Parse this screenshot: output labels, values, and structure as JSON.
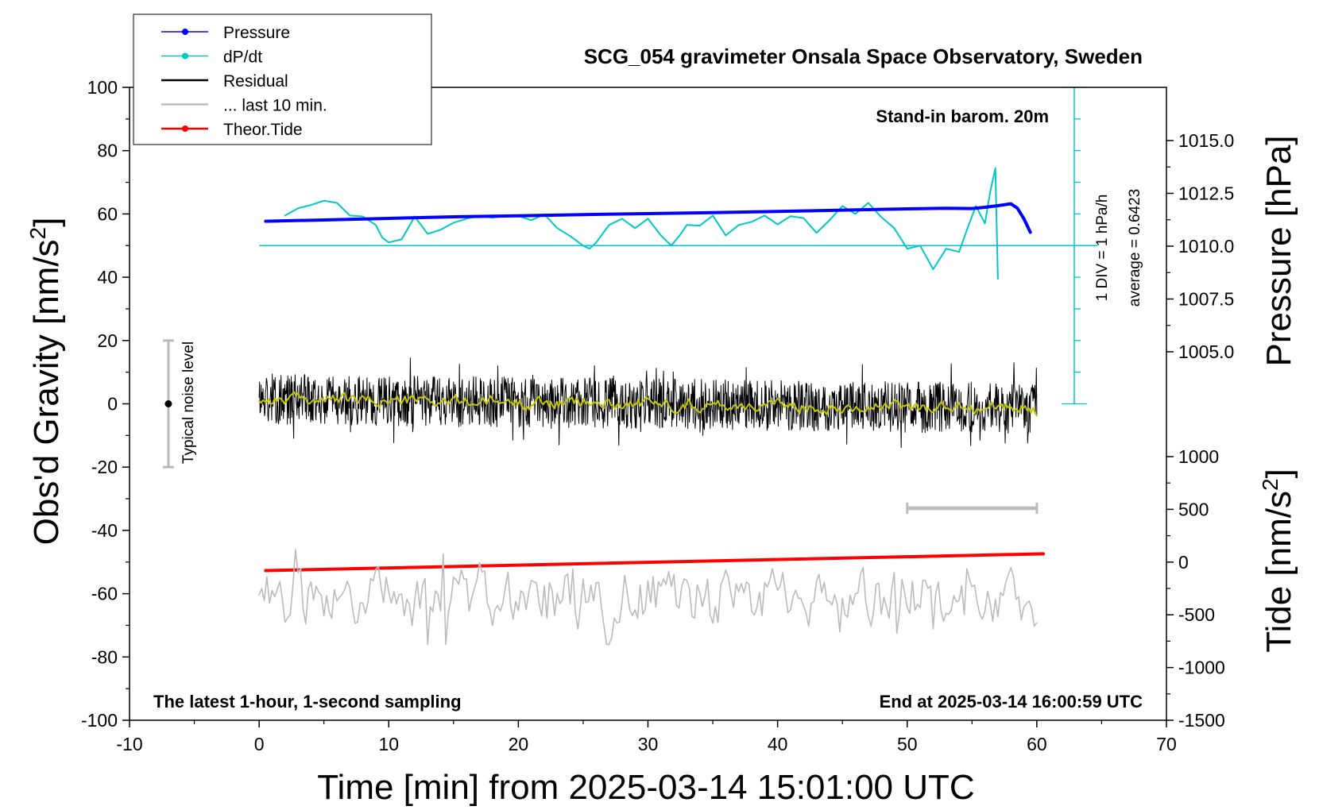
{
  "chart_data": {
    "type": "line",
    "title": "SCG_054 gravimeter Onsala Space Observatory, Sweden",
    "xlabel": "Time [min] from 2025-03-14 15:01:00 UTC",
    "xlim": [
      -10,
      70
    ],
    "xticks": [
      "-10",
      "0",
      "10",
      "20",
      "30",
      "40",
      "50",
      "60",
      "70"
    ],
    "ylabel_left": {
      "pre": "Obs'd Gravity [nm/s",
      "sup": "2",
      "post": "]"
    },
    "ylim_left": [
      -100,
      100
    ],
    "yticks_left": [
      "-100",
      "-80",
      "-60",
      "-40",
      "-20",
      "0",
      "20",
      "40",
      "60",
      "80",
      "100"
    ],
    "ylabel_pressure": "Pressure [hPa]",
    "yticks_pressure": [
      "1005.0",
      "1007.5",
      "1010.0",
      "1012.5",
      "1015.0"
    ],
    "ylabel_tide": {
      "pre": "Tide [nm/s",
      "sup": "2",
      "post": "]"
    },
    "yticks_tide": [
      "-1500",
      "-1000",
      "-500",
      "0",
      "500",
      "1000"
    ],
    "annotations": {
      "barometer": "Stand-in barom. 20m",
      "div": "1 DIV = 1 hPa/h",
      "average": "average = 0.6423",
      "noise": "Typical noise level",
      "latest": "The latest 1-hour, 1-second sampling",
      "end": "End at 2025-03-14 16:00:59 UTC"
    },
    "legend": [
      {
        "label": "Pressure",
        "color": "#0000ff",
        "marker": true
      },
      {
        "label": "dP/dt",
        "color": "#00c8c8",
        "marker": true
      },
      {
        "label": "Residual",
        "color": "#000000",
        "marker": false
      },
      {
        "label": "... last 10 min.",
        "color": "#bbbbbb",
        "marker": false
      },
      {
        "label": "Theor.Tide",
        "color": "#ff0000",
        "marker": true
      }
    ],
    "legend_position": "top-left",
    "colors": {
      "pressure": "#0000ff",
      "dpdt": "#00c8c8",
      "residual": "#000000",
      "smoothed": "#c8c800",
      "last10": "#bbbbbb",
      "tide": "#ff0000",
      "noise": "#bbbbbb"
    },
    "series": [
      {
        "name": "Pressure",
        "axis": "left",
        "x": [
          0.5,
          5,
          10,
          15,
          20,
          25,
          30,
          35,
          40,
          45,
          50,
          53,
          55,
          56,
          57,
          58,
          58.5,
          59,
          59.5
        ],
        "y": [
          57.7,
          58.1,
          58.6,
          59.1,
          59.4,
          59.8,
          60.1,
          60.4,
          60.8,
          61.2,
          61.6,
          61.8,
          61.7,
          62.1,
          62.6,
          63.2,
          61.8,
          58.5,
          54.2
        ]
      },
      {
        "name": "dP/dt",
        "axis": "left",
        "baseline": 50,
        "x": [
          2,
          3,
          4,
          5,
          6,
          7,
          8,
          9,
          9.5,
          10,
          11,
          12,
          13,
          14,
          15,
          16,
          17,
          18,
          19,
          20,
          21,
          22,
          23,
          24,
          25,
          25.5,
          26,
          27,
          28,
          29,
          30,
          31,
          31.8,
          32.5,
          33,
          34,
          35,
          36,
          37,
          38,
          39,
          40,
          41,
          42,
          43,
          44,
          45,
          46,
          47,
          48,
          49,
          50,
          51,
          52,
          53,
          54,
          54.7,
          55.3,
          56,
          56.4,
          56.8,
          57
        ],
        "y": [
          59.5,
          61.8,
          62.8,
          64.2,
          63.5,
          59.5,
          59.2,
          56.5,
          52.5,
          51,
          52,
          59.2,
          53.7,
          55,
          57.2,
          58.5,
          59.5,
          58.8,
          59.5,
          59.4,
          58,
          59.9,
          55.5,
          53,
          50,
          49,
          51,
          56.5,
          58.5,
          55.5,
          58.5,
          53.2,
          50,
          53.5,
          56.5,
          56.3,
          59.5,
          53.2,
          56.5,
          57.5,
          59.5,
          56.7,
          59.3,
          58.7,
          54,
          58,
          62.5,
          60,
          63.5,
          59,
          55.5,
          49,
          50,
          42.5,
          49,
          48,
          56,
          62.5,
          57,
          67,
          74.5,
          39.5
        ]
      },
      {
        "name": "Residual",
        "axis": "left",
        "x": [
          0,
          60
        ],
        "center": [
          1.5,
          -1.5
        ],
        "amplitude": 8
      },
      {
        "name": "Smoothed residual",
        "axis": "left",
        "x": [
          0,
          60
        ],
        "center": [
          1.5,
          -1.5
        ],
        "amplitude": 1.5
      },
      {
        "name": "... last 10 min.",
        "axis": "left",
        "x": [
          0,
          60
        ],
        "center": -62,
        "amplitude": 8
      },
      {
        "name": "Theor.Tide",
        "axis": "left",
        "x": [
          0.5,
          60.5
        ],
        "y": [
          -52.7,
          -47.4
        ]
      }
    ],
    "noise_bar": {
      "x": -7,
      "center": 0,
      "range": [
        -20,
        20
      ]
    },
    "last10_bar": {
      "x": [
        50,
        60
      ],
      "y": -33
    }
  }
}
